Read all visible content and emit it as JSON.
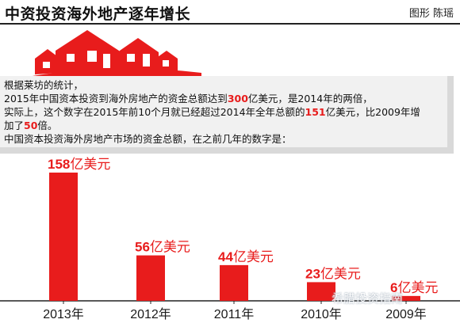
{
  "header": {
    "title": "中资投资海外地产逐年增长",
    "credit": "图形 陈瑶"
  },
  "intro": {
    "line1": "根据莱坊的统计，",
    "line2": {
      "pre": "2015年中国资本投资到海外房地产的资金总额达到",
      "num": "300",
      "post": "亿美元，是2014年的两倍，"
    },
    "line3": {
      "pre": "实际上，这个数字在2015年前10个月就已经超过2014年全年总额的",
      "num": "151",
      "post": "亿美元，比2009年增"
    },
    "line4": {
      "pre": "加了",
      "num": "50",
      "post": "倍。"
    },
    "line5": "中国资本投资海外房地产市场的资金总额，在之前几年的数字是："
  },
  "colors": {
    "bar": "#e81c1c",
    "accent": "#e81c1c",
    "panel": "#f1f1f1"
  },
  "chart_data": {
    "type": "bar",
    "categories": [
      "2013年",
      "2012年",
      "2011年",
      "2010年",
      "2009年"
    ],
    "values": [
      158,
      56,
      44,
      23,
      6
    ],
    "unit": "亿美元",
    "ylim": [
      0,
      158
    ]
  },
  "watermark": "希腊投资指南"
}
